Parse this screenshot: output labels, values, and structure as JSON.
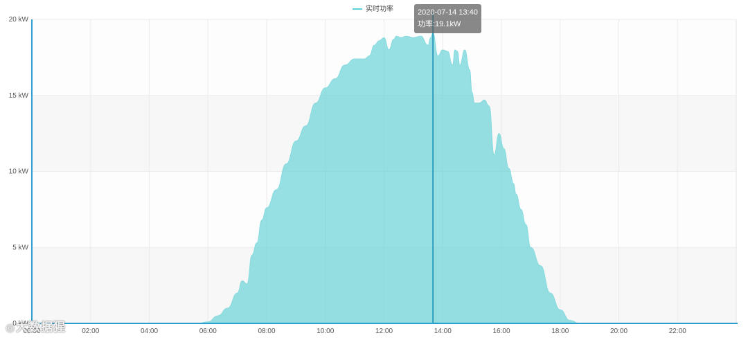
{
  "chart_data": {
    "type": "area",
    "legend": {
      "label": "实时功率",
      "position": "top-center"
    },
    "series": [
      {
        "name": "实时功率",
        "color": "#5ccfd4",
        "x": [
          "00:00",
          "04:00",
          "05:40",
          "06:00",
          "06:20",
          "06:40",
          "07:00",
          "07:10",
          "07:20",
          "07:30",
          "07:40",
          "07:50",
          "08:00",
          "08:20",
          "08:40",
          "09:00",
          "09:20",
          "09:40",
          "10:00",
          "10:20",
          "10:40",
          "11:00",
          "11:20",
          "11:30",
          "11:40",
          "11:50",
          "12:00",
          "12:10",
          "12:20",
          "12:25",
          "12:35",
          "12:45",
          "13:00",
          "13:15",
          "13:30",
          "13:35",
          "13:40",
          "13:50",
          "14:00",
          "14:10",
          "14:20",
          "14:25",
          "14:30",
          "14:35",
          "14:45",
          "14:55",
          "15:00",
          "15:05",
          "15:15",
          "15:25",
          "15:35",
          "15:45",
          "15:55",
          "16:05",
          "16:15",
          "16:25",
          "16:30",
          "16:40",
          "16:50",
          "17:00",
          "17:20",
          "17:40",
          "18:00",
          "18:20",
          "18:40",
          "19:00",
          "19:10",
          "19:20",
          "24:00"
        ],
        "values": [
          0,
          0,
          0,
          0.1,
          0.5,
          1.0,
          2.0,
          2.8,
          2.6,
          4.5,
          5.3,
          6.8,
          7.6,
          8.8,
          10.5,
          12.0,
          13.0,
          14.5,
          15.5,
          16.1,
          17.0,
          17.4,
          17.4,
          17.6,
          18.3,
          18.6,
          18.8,
          18.0,
          18.7,
          18.9,
          18.8,
          18.9,
          18.8,
          18.9,
          18.3,
          18.8,
          19.1,
          17.6,
          18.0,
          17.9,
          17.0,
          18.0,
          17.9,
          17.0,
          18.0,
          16.7,
          15.2,
          14.5,
          14.5,
          14.7,
          14.3,
          11.1,
          12.5,
          11.5,
          10.2,
          9.2,
          8.5,
          7.5,
          6.5,
          5.0,
          3.8,
          2.0,
          0.9,
          0.2,
          0,
          0,
          0,
          0,
          0
        ]
      }
    ],
    "x_range": [
      "00:00",
      "24:00"
    ],
    "x_ticks": [
      "00:00",
      "02:00",
      "04:00",
      "06:00",
      "08:00",
      "10:00",
      "12:00",
      "14:00",
      "16:00",
      "18:00",
      "20:00",
      "22:00"
    ],
    "y_unit": "kW",
    "ylim": [
      0,
      20
    ],
    "y_ticks": [
      "0 kW",
      "5 kW",
      "10 kW",
      "15 kW",
      "20 kW"
    ],
    "grid": true,
    "crosshair_x": "13:40",
    "tooltip": {
      "time": "2020-07-14 13:40",
      "value_label": "功率:19.1kW"
    }
  },
  "watermark": {
    "text": "大数据猩",
    "icon": "wechat-icon"
  }
}
